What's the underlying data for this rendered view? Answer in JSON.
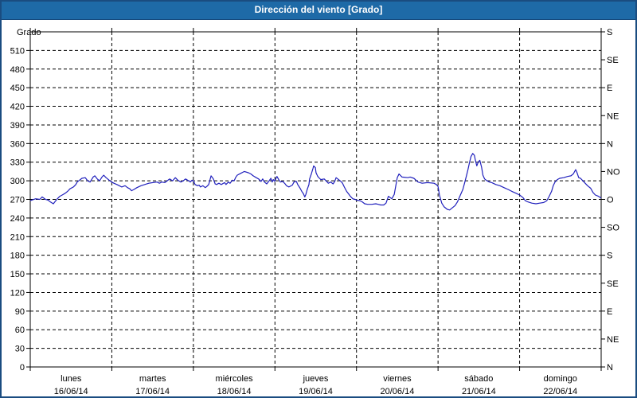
{
  "window": {
    "title": "Dirección del viento [Grado]"
  },
  "colors": {
    "titlebar_bg": "#1e6aa7",
    "frame_border": "#1a4c80",
    "series_line": "#2121bd",
    "grid": "#000000",
    "text": "#000000",
    "plot_bg": "#ffffff"
  },
  "chart_data": {
    "type": "line",
    "title": "Dirección del viento [Grado]",
    "ylabel": "Grado",
    "y_min": 0,
    "y_max": 540,
    "grid": "dashed",
    "legend": "none",
    "y_ticks_left": [
      0,
      30,
      60,
      90,
      120,
      150,
      180,
      210,
      240,
      270,
      300,
      330,
      360,
      390,
      420,
      450,
      480,
      510
    ],
    "y_ticks_right": [
      {
        "value": 0,
        "label": "N"
      },
      {
        "value": 45,
        "label": "NE"
      },
      {
        "value": 90,
        "label": "E"
      },
      {
        "value": 135,
        "label": "SE"
      },
      {
        "value": 180,
        "label": "S"
      },
      {
        "value": 225,
        "label": "SO"
      },
      {
        "value": 270,
        "label": "O"
      },
      {
        "value": 315,
        "label": "NO"
      },
      {
        "value": 360,
        "label": "N"
      },
      {
        "value": 405,
        "label": "NE"
      },
      {
        "value": 450,
        "label": "E"
      },
      {
        "value": 495,
        "label": "SE"
      },
      {
        "value": 540,
        "label": "S"
      }
    ],
    "x_min_hours": 0,
    "x_max_hours": 168,
    "days": [
      {
        "name": "lunes",
        "date": "16/06/14"
      },
      {
        "name": "martes",
        "date": "17/06/14"
      },
      {
        "name": "miércoles",
        "date": "18/06/14"
      },
      {
        "name": "jueves",
        "date": "19/06/14"
      },
      {
        "name": "viernes",
        "date": "20/06/14"
      },
      {
        "name": "sábado",
        "date": "21/06/14"
      },
      {
        "name": "domingo",
        "date": "22/06/14"
      }
    ],
    "series": [
      {
        "name": "Dirección del viento",
        "unit": "Grado",
        "color": "#2121bd",
        "points": [
          [
            0,
            268
          ],
          [
            1.6,
            271
          ],
          [
            2.8,
            270
          ],
          [
            3.5,
            274
          ],
          [
            4.5,
            270
          ],
          [
            5.2,
            269
          ],
          [
            5.9,
            266
          ],
          [
            6.8,
            263
          ],
          [
            7.5,
            268
          ],
          [
            8,
            271
          ],
          [
            8.7,
            275
          ],
          [
            9.4,
            277
          ],
          [
            10.3,
            280
          ],
          [
            11,
            283
          ],
          [
            11.7,
            287
          ],
          [
            12.7,
            290
          ],
          [
            13.4,
            294
          ],
          [
            13.8,
            298
          ],
          [
            14.5,
            301
          ],
          [
            15.2,
            304
          ],
          [
            16.2,
            305
          ],
          [
            16.9,
            300
          ],
          [
            17.6,
            298
          ],
          [
            18.5,
            306
          ],
          [
            19,
            308
          ],
          [
            19.7,
            303
          ],
          [
            20.4,
            300
          ],
          [
            21.1,
            306
          ],
          [
            21.6,
            309
          ],
          [
            22.3,
            305
          ],
          [
            23.2,
            301
          ],
          [
            24,
            298
          ],
          [
            24.6,
            296
          ],
          [
            25.5,
            294
          ],
          [
            26.2,
            292
          ],
          [
            26.9,
            290
          ],
          [
            27.9,
            292
          ],
          [
            28.6,
            289
          ],
          [
            29.3,
            287
          ],
          [
            29.8,
            284
          ],
          [
            30.5,
            286
          ],
          [
            31.4,
            289
          ],
          [
            32.6,
            292
          ],
          [
            33.7,
            294
          ],
          [
            34.9,
            296
          ],
          [
            36.1,
            297
          ],
          [
            37.3,
            298
          ],
          [
            38,
            296
          ],
          [
            38.7,
            298
          ],
          [
            39.6,
            297
          ],
          [
            40.3,
            300
          ],
          [
            41,
            303
          ],
          [
            41.9,
            300
          ],
          [
            42.7,
            305
          ],
          [
            43.4,
            301
          ],
          [
            44.3,
            298
          ],
          [
            45,
            300
          ],
          [
            45.7,
            303
          ],
          [
            46.6,
            300
          ],
          [
            47.1,
            298
          ],
          [
            47.6,
            301
          ],
          [
            48,
            300
          ],
          [
            48.5,
            294
          ],
          [
            49.2,
            292
          ],
          [
            49.7,
            293
          ],
          [
            50.1,
            290
          ],
          [
            50.8,
            292
          ],
          [
            51.5,
            289
          ],
          [
            52,
            291
          ],
          [
            52.5,
            294
          ],
          [
            53.2,
            308
          ],
          [
            53.9,
            303
          ],
          [
            54.4,
            295
          ],
          [
            54.8,
            294
          ],
          [
            55.5,
            296
          ],
          [
            56.2,
            294
          ],
          [
            57.2,
            297
          ],
          [
            57.6,
            294
          ],
          [
            58.3,
            298
          ],
          [
            58.8,
            296
          ],
          [
            59.5,
            301
          ],
          [
            60,
            300
          ],
          [
            60.4,
            305
          ],
          [
            60.9,
            309
          ],
          [
            61.9,
            312
          ],
          [
            63,
            315
          ],
          [
            64.2,
            313
          ],
          [
            64.9,
            311
          ],
          [
            65.6,
            308
          ],
          [
            66.5,
            305
          ],
          [
            67.2,
            303
          ],
          [
            67.9,
            299
          ],
          [
            68.4,
            303
          ],
          [
            68.9,
            298
          ],
          [
            69.6,
            295
          ],
          [
            70.3,
            300
          ],
          [
            70.8,
            304
          ],
          [
            71.2,
            298
          ],
          [
            71.5,
            302
          ],
          [
            71.9,
            299
          ],
          [
            72.4,
            305
          ],
          [
            72.6,
            307
          ],
          [
            73.1,
            302
          ],
          [
            73.6,
            298
          ],
          [
            74.3,
            299
          ],
          [
            75,
            295
          ],
          [
            75.4,
            292
          ],
          [
            76.1,
            290
          ],
          [
            77.1,
            293
          ],
          [
            77.6,
            298
          ],
          [
            78.3,
            299
          ],
          [
            78.7,
            294
          ],
          [
            79.4,
            288
          ],
          [
            79.9,
            283
          ],
          [
            80.4,
            279
          ],
          [
            80.8,
            274
          ],
          [
            81.1,
            278
          ],
          [
            81.5,
            286
          ],
          [
            82,
            294
          ],
          [
            82.2,
            303
          ],
          [
            82.7,
            311
          ],
          [
            83.2,
            320
          ],
          [
            83.4,
            324
          ],
          [
            83.9,
            321
          ],
          [
            84.1,
            313
          ],
          [
            84.6,
            307
          ],
          [
            85.1,
            304
          ],
          [
            85.5,
            302
          ],
          [
            86.5,
            303
          ],
          [
            87.2,
            299
          ],
          [
            87.7,
            296
          ],
          [
            88.4,
            298
          ],
          [
            89.1,
            295
          ],
          [
            89.6,
            299
          ],
          [
            90,
            305
          ],
          [
            90.5,
            303
          ],
          [
            91.4,
            299
          ],
          [
            91.9,
            296
          ],
          [
            92.4,
            290
          ],
          [
            93.1,
            283
          ],
          [
            93.8,
            278
          ],
          [
            94.2,
            275
          ],
          [
            94.9,
            271
          ],
          [
            95.6,
            270
          ],
          [
            96,
            269
          ],
          [
            97,
            268
          ],
          [
            97.7,
            266
          ],
          [
            98.4,
            263
          ],
          [
            99.3,
            262
          ],
          [
            100.5,
            262
          ],
          [
            101.7,
            263
          ],
          [
            102.4,
            262
          ],
          [
            103.1,
            261
          ],
          [
            104,
            261
          ],
          [
            104.7,
            264
          ],
          [
            105.4,
            275
          ],
          [
            106.4,
            271
          ],
          [
            107.1,
            278
          ],
          [
            107.5,
            290
          ],
          [
            108,
            305
          ],
          [
            108.5,
            311
          ],
          [
            109.4,
            306
          ],
          [
            111.1,
            305
          ],
          [
            111.8,
            306
          ],
          [
            112.9,
            304
          ],
          [
            114.1,
            298
          ],
          [
            115.3,
            296
          ],
          [
            116.9,
            297
          ],
          [
            118.8,
            296
          ],
          [
            119.5,
            294
          ],
          [
            120,
            291
          ],
          [
            120.4,
            277
          ],
          [
            121.1,
            264
          ],
          [
            121.8,
            258
          ],
          [
            122.7,
            254
          ],
          [
            123.4,
            253
          ],
          [
            124.1,
            256
          ],
          [
            125,
            260
          ],
          [
            125.7,
            266
          ],
          [
            126.4,
            275
          ],
          [
            127.3,
            286
          ],
          [
            127.8,
            296
          ],
          [
            128.3,
            307
          ],
          [
            128.8,
            318
          ],
          [
            129.2,
            328
          ],
          [
            129.7,
            339
          ],
          [
            130.2,
            344
          ],
          [
            130.7,
            341
          ],
          [
            130.9,
            335
          ],
          [
            131.4,
            324
          ],
          [
            131.8,
            330
          ],
          [
            132.3,
            333
          ],
          [
            132.8,
            322
          ],
          [
            133.2,
            309
          ],
          [
            133.7,
            303
          ],
          [
            134.4,
            300
          ],
          [
            135.1,
            298
          ],
          [
            135.8,
            297
          ],
          [
            137,
            294
          ],
          [
            138.2,
            292
          ],
          [
            139.4,
            289
          ],
          [
            140.6,
            286
          ],
          [
            141.7,
            283
          ],
          [
            142.9,
            280
          ],
          [
            144,
            277
          ],
          [
            145,
            273
          ],
          [
            145.7,
            268
          ],
          [
            146.4,
            266
          ],
          [
            147.6,
            264
          ],
          [
            148.8,
            263
          ],
          [
            149.9,
            264
          ],
          [
            151.1,
            265
          ],
          [
            152,
            268
          ],
          [
            152.7,
            275
          ],
          [
            153.4,
            283
          ],
          [
            153.9,
            292
          ],
          [
            154.4,
            298
          ],
          [
            155.1,
            302
          ],
          [
            155.8,
            304
          ],
          [
            157,
            305
          ],
          [
            158.1,
            307
          ],
          [
            159.1,
            308
          ],
          [
            159.8,
            311
          ],
          [
            160.5,
            318
          ],
          [
            160.9,
            313
          ],
          [
            161.4,
            305
          ],
          [
            161.9,
            304
          ],
          [
            162.6,
            300
          ],
          [
            163.3,
            296
          ],
          [
            164,
            292
          ],
          [
            164.9,
            288
          ],
          [
            165.6,
            281
          ],
          [
            166.3,
            277
          ],
          [
            167.2,
            275
          ],
          [
            168,
            272
          ]
        ]
      }
    ]
  }
}
